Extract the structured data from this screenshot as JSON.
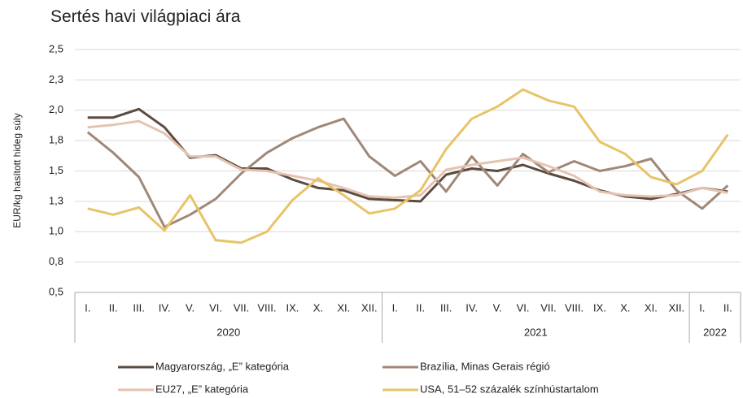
{
  "chart_data": {
    "type": "line",
    "title": "Sertés havi világpiaci ára",
    "y_label": "EUR/kg hasított hideg súly",
    "categories": [
      "I.",
      "II.",
      "III.",
      "IV.",
      "V.",
      "VI.",
      "VII.",
      "VIII.",
      "IX.",
      "X.",
      "XI.",
      "XII.",
      "I.",
      "II.",
      "III.",
      "IV.",
      "V.",
      "VI.",
      "VII.",
      "VIII.",
      "IX.",
      "X.",
      "XI.",
      "XII.",
      "I.",
      "II."
    ],
    "category_groups": [
      {
        "label": "2020",
        "span": 12
      },
      {
        "label": "2021",
        "span": 12
      },
      {
        "label": "2022",
        "span": 2
      }
    ],
    "ylim": [
      0.5,
      2.5
    ],
    "yticks": [
      {
        "value": 0.5,
        "label": "0,5"
      },
      {
        "value": 0.75,
        "label": "0,8"
      },
      {
        "value": 1.0,
        "label": "1,0"
      },
      {
        "value": 1.25,
        "label": "1,3"
      },
      {
        "value": 1.5,
        "label": "1,5"
      },
      {
        "value": 1.75,
        "label": "1,8"
      },
      {
        "value": 2.0,
        "label": "2,0"
      },
      {
        "value": 2.25,
        "label": "2,3"
      },
      {
        "value": 2.5,
        "label": "2,5"
      }
    ],
    "grid": true,
    "legend_position": "bottom",
    "series": [
      {
        "name": "Magyarország, „E” kategória",
        "color": "#5b4a3e",
        "values": [
          1.94,
          1.94,
          2.01,
          1.86,
          1.61,
          1.63,
          1.52,
          1.52,
          1.43,
          1.36,
          1.34,
          1.27,
          1.26,
          1.25,
          1.47,
          1.52,
          1.5,
          1.55,
          1.48,
          1.42,
          1.34,
          1.29,
          1.27,
          1.31,
          1.36,
          1.33
        ]
      },
      {
        "name": "Brazília, Minas Gerais régió",
        "color": "#a08878",
        "values": [
          1.82,
          1.65,
          1.45,
          1.04,
          1.14,
          1.27,
          1.48,
          1.65,
          1.77,
          1.86,
          1.93,
          1.62,
          1.46,
          1.58,
          1.33,
          1.62,
          1.38,
          1.64,
          1.49,
          1.58,
          1.5,
          1.54,
          1.6,
          1.34,
          1.19,
          1.38
        ]
      },
      {
        "name": "EU27, „E” kategória",
        "color": "#e6c3b0",
        "values": [
          1.86,
          1.88,
          1.91,
          1.81,
          1.62,
          1.62,
          1.51,
          1.5,
          1.46,
          1.42,
          1.36,
          1.29,
          1.28,
          1.3,
          1.51,
          1.55,
          1.58,
          1.61,
          1.54,
          1.46,
          1.33,
          1.3,
          1.29,
          1.3,
          1.36,
          1.32
        ]
      },
      {
        "name": "USA, 51–52 százalék színhústartalom",
        "color": "#e8c468",
        "values": [
          1.19,
          1.14,
          1.2,
          1.01,
          1.3,
          0.93,
          0.91,
          1.0,
          1.26,
          1.44,
          1.3,
          1.15,
          1.19,
          1.34,
          1.68,
          1.93,
          2.03,
          2.17,
          2.08,
          2.03,
          1.74,
          1.64,
          1.45,
          1.39,
          1.5,
          1.8
        ]
      }
    ]
  }
}
